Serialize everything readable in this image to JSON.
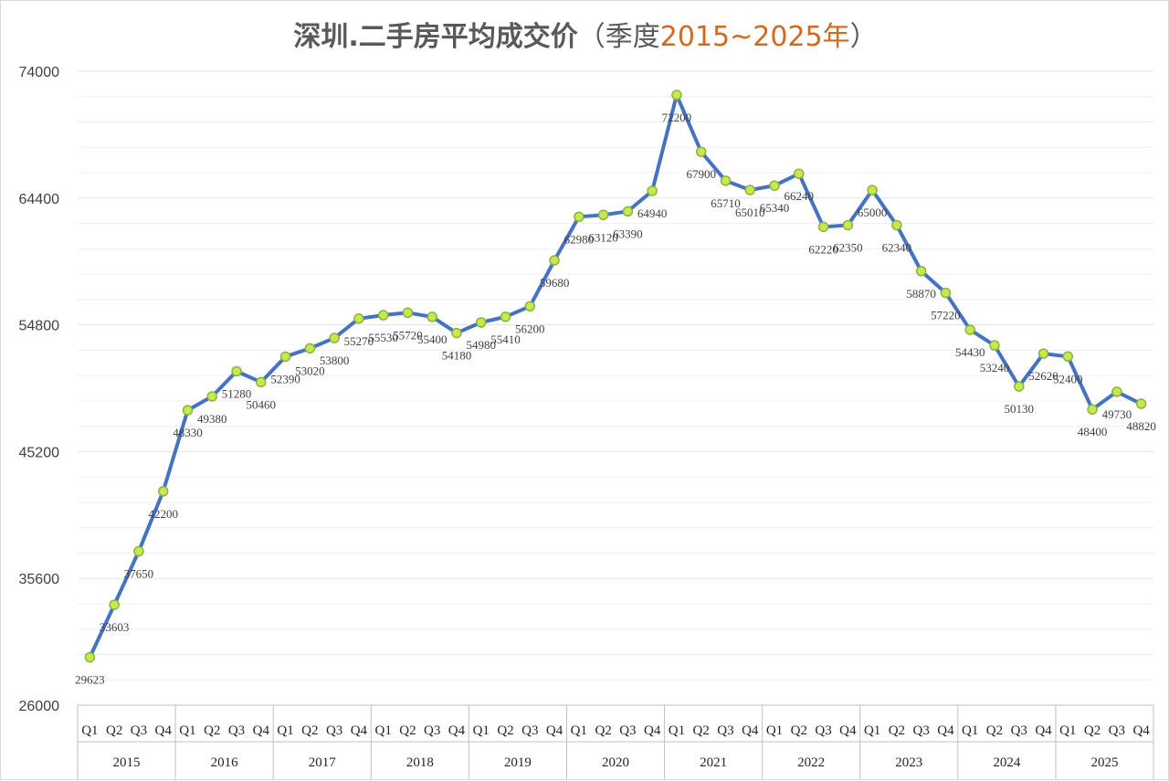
{
  "title": {
    "main": "深圳.二手房平均成交价",
    "paren_open": "（",
    "paren_label": "季度",
    "range": "2015~2025年",
    "paren_close": "）"
  },
  "colors": {
    "line": "#4472C4",
    "marker_fill": "#C6E94F",
    "marker_stroke": "#8CB33A",
    "title_accent": "#D2691E",
    "grid": "#E3E3E3"
  },
  "chart_data": {
    "type": "line",
    "title": "深圳.二手房平均成交价（季度2015~2025年）",
    "xlabel": "",
    "ylabel": "",
    "ylim": [
      26000,
      74000
    ],
    "yticks": [
      26000,
      35600,
      45200,
      54800,
      64400,
      74000
    ],
    "grid": true,
    "legend": "none",
    "quarter_labels": [
      "Q1",
      "Q2",
      "Q3",
      "Q4"
    ],
    "years": [
      "2015",
      "2016",
      "2017",
      "2018",
      "2019",
      "2020",
      "2021",
      "2022",
      "2023",
      "2024",
      "2025"
    ],
    "series": [
      {
        "values": [
          29623,
          33603,
          37650,
          42200,
          48330,
          49380,
          51280,
          50460,
          52390,
          53020,
          53800,
          55270,
          55530,
          55720,
          55400,
          54180,
          54980,
          55410,
          56200,
          59680,
          62980,
          63120,
          63390,
          64940,
          72200,
          67900,
          65710,
          65010,
          65340,
          66240,
          62220,
          62350,
          65000,
          62340,
          58870,
          57220,
          54430,
          53240,
          50130,
          52620,
          52400,
          48400,
          49730,
          48820
        ]
      }
    ]
  }
}
